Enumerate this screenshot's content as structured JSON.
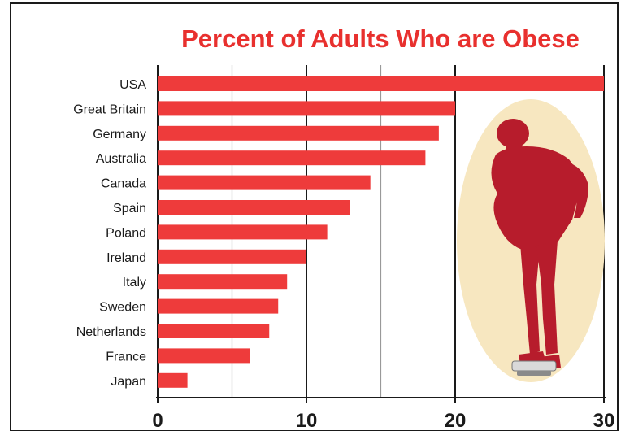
{
  "colors": {
    "bar": "#ee3b3b",
    "title": "#e8302e",
    "silhouette": "#b71c2c",
    "backdrop": "#f7e7c0",
    "frame": "#1a1a1a",
    "gridline": "#999999"
  },
  "chart_data": {
    "type": "bar",
    "orientation": "horizontal",
    "title": "Percent of Adults Who are Obese",
    "categories": [
      "USA",
      "Great Britain",
      "Germany",
      "Australia",
      "Canada",
      "Spain",
      "Poland",
      "Ireland",
      "Italy",
      "Sweden",
      "Netherlands",
      "France",
      "Japan"
    ],
    "values": [
      30.0,
      20.0,
      18.9,
      18.0,
      14.3,
      12.9,
      11.4,
      10.0,
      8.7,
      8.1,
      7.5,
      6.2,
      2.0
    ],
    "xlim": [
      0,
      30
    ],
    "ticks": [
      0,
      10,
      20,
      30
    ],
    "tick_labels": [
      "0",
      "10",
      "20",
      "30"
    ],
    "minor_ticks": [
      5,
      15
    ],
    "grid": true,
    "legend": "none",
    "illustration": "overweight-person-on-scale-icon"
  }
}
